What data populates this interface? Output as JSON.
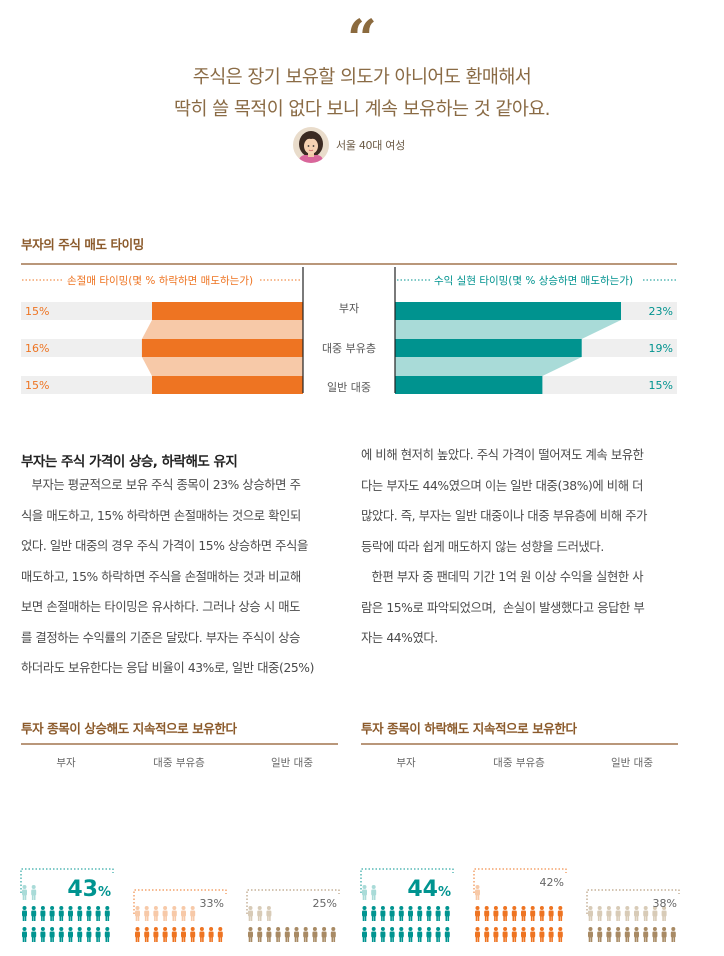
{
  "quote": {
    "mark": "“",
    "lines": [
      "주식은 장기 보유할 의도가 아니어도 환매해서",
      "딱히 쓸 목적이 없다 보니 계속 보유하는 것 같아요."
    ],
    "speaker": "서울 40대 여성"
  },
  "section1": {
    "title": "부자의 주식 매도 타이밍",
    "left_header": "손절매 타이밍(몇 % 하락하면 매도하는가)",
    "right_header": "수익 실현 타이밍(몇 % 상승하면 매도하는가)"
  },
  "colors": {
    "orange": "#ee7422",
    "orange_light": "#f7c9a8",
    "teal": "#00938f",
    "teal_light": "#a9dbd8",
    "brown": "#a88a64",
    "gray_bg": "#efefef"
  },
  "chart_data": [
    {
      "type": "bar",
      "title": "부자의 주식 매도 타이밍",
      "categories": [
        "부자",
        "대중 부유층",
        "일반 대중"
      ],
      "series": [
        {
          "name": "손절매 타이밍(몇 % 하락하면 매도하는가)",
          "values": [
            15,
            16,
            15
          ],
          "labels": [
            "15%",
            "16%",
            "15%"
          ]
        },
        {
          "name": "수익 실현 타이밍(몇 % 상승하면 매도하는가)",
          "values": [
            23,
            19,
            15
          ],
          "labels": [
            "23%",
            "19%",
            "15%"
          ]
        }
      ]
    },
    {
      "type": "bar",
      "title": "투자 종목이 상승해도 지속적으로 보유한다",
      "categories": [
        "부자",
        "대중 부유층",
        "일반 대중"
      ],
      "values": [
        43,
        33,
        25
      ],
      "labels": [
        "43%",
        "33%",
        "25%"
      ]
    },
    {
      "type": "bar",
      "title": "투자 종목이 하락해도 지속적으로 보유한다",
      "categories": [
        "부자",
        "대중 부유층",
        "일반 대중"
      ],
      "values": [
        44,
        42,
        38
      ],
      "labels": [
        "44%",
        "42%",
        "38%"
      ]
    }
  ],
  "article": {
    "title": "부자는 주식 가격이 상승, 하락해도 유지",
    "col1": [
      "   부자는 평균적으로 보유 주식 종목이 23% 상승하면 주",
      "식을 매도하고, 15% 하락하면 손절매하는 것으로 확인되",
      "었다. 일반 대중의 경우 주식 가격이 15% 상승하면 주식을",
      "매도하고, 15% 하락하면 주식을 손절매하는 것과 비교해",
      "보면 손절매하는 타이밍은 유사하다. 그러나 상승 시 매도",
      "를 결정하는 수익률의 기준은 달랐다. 부자는 주식이 상승",
      "하더라도 보유한다는 응답 비율이 43%로, 일반 대중(25%)"
    ],
    "col2": [
      "에 비해 현저히 높았다. 주식 가격이 떨어져도 계속 보유한",
      "다는 부자도 44%였으며 이는 일반 대중(38%)에 비해 더",
      "많았다. 즉, 부자는 일반 대중이나 대중 부유층에 비해 주가",
      "등락에 따라 쉽게 매도하지 않는 성향을 드러냈다.",
      "   한편 부자 중 팬데믹 기간 1억 원 이상 수익을 실현한 사",
      "람은 15%로 파악되었으며,  손실이 발생했다고 응답한 부",
      "자는 44%였다."
    ]
  }
}
